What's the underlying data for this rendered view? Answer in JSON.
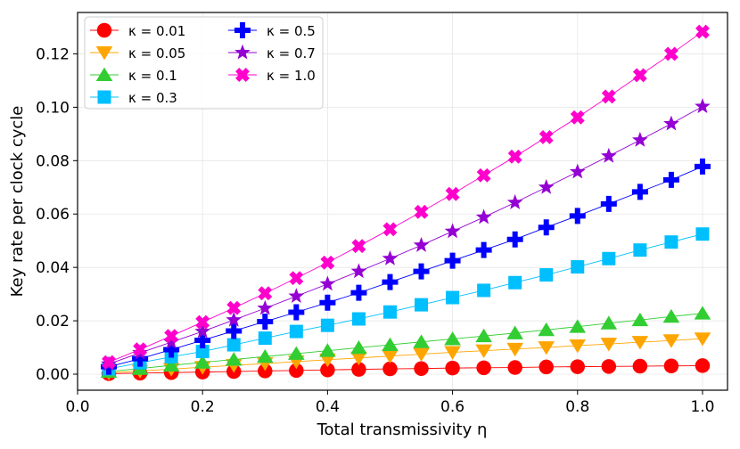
{
  "chart_data": {
    "type": "line",
    "xlabel": "Total transmissivity η",
    "ylabel": "Key rate per clock cycle",
    "xlim": [
      0.0,
      1.04
    ],
    "ylim": [
      -0.006,
      0.1355
    ],
    "xticks": [
      0.0,
      0.2,
      0.4,
      0.6,
      0.8,
      1.0
    ],
    "xtick_labels": [
      "0.0",
      "0.2",
      "0.4",
      "0.6",
      "0.8",
      "1.0"
    ],
    "yticks": [
      0.0,
      0.02,
      0.04,
      0.06,
      0.08,
      0.1,
      0.12
    ],
    "ytick_labels": [
      "0.00",
      "0.02",
      "0.04",
      "0.06",
      "0.08",
      "0.10",
      "0.12"
    ],
    "grid": true,
    "legend_position": "top-left",
    "legend_columns": 2,
    "x": [
      0.05,
      0.1,
      0.15,
      0.2,
      0.25,
      0.3,
      0.35,
      0.4,
      0.45,
      0.5,
      0.55,
      0.6,
      0.65,
      0.7,
      0.75,
      0.8,
      0.85,
      0.9,
      0.95,
      1.0
    ],
    "series": [
      {
        "name": "κ = 0.01",
        "color": "#ff0000",
        "marker": "circle",
        "values": [
          0.0002,
          0.0004,
          0.0006,
          0.0008,
          0.001,
          0.0012,
          0.0014,
          0.0016,
          0.0018,
          0.002,
          0.0021,
          0.0023,
          0.0024,
          0.0025,
          0.0027,
          0.0028,
          0.0029,
          0.003,
          0.0031,
          0.0032
        ]
      },
      {
        "name": "κ = 0.05",
        "color": "#ffa500",
        "marker": "triangle-down",
        "values": [
          0.0005,
          0.0012,
          0.0019,
          0.0026,
          0.0033,
          0.004,
          0.0047,
          0.0054,
          0.0061,
          0.0068,
          0.0075,
          0.0082,
          0.0088,
          0.0094,
          0.01,
          0.0107,
          0.0113,
          0.012,
          0.0126,
          0.0133
        ]
      },
      {
        "name": "κ = 0.1",
        "color": "#32cd32",
        "marker": "triangle-up",
        "values": [
          0.001,
          0.0021,
          0.0033,
          0.0044,
          0.0055,
          0.0066,
          0.0077,
          0.0088,
          0.0099,
          0.011,
          0.0121,
          0.0132,
          0.0143,
          0.0154,
          0.0166,
          0.0178,
          0.0191,
          0.0203,
          0.0216,
          0.0228
        ]
      },
      {
        "name": "κ = 0.3",
        "color": "#00bfff",
        "marker": "square",
        "values": [
          0.002,
          0.0043,
          0.0065,
          0.0085,
          0.011,
          0.0135,
          0.016,
          0.0183,
          0.0207,
          0.0233,
          0.026,
          0.0287,
          0.0314,
          0.0343,
          0.0372,
          0.0402,
          0.0433,
          0.0465,
          0.0495,
          0.0525
        ]
      },
      {
        "name": "κ = 0.5",
        "color": "#0000ff",
        "marker": "plus",
        "values": [
          0.0028,
          0.0058,
          0.0092,
          0.0127,
          0.0162,
          0.0197,
          0.0232,
          0.0268,
          0.0305,
          0.0345,
          0.0385,
          0.0425,
          0.0465,
          0.0505,
          0.055,
          0.0593,
          0.0638,
          0.0683,
          0.0728,
          0.0778
        ]
      },
      {
        "name": "κ = 0.7",
        "color": "#9400d3",
        "marker": "star",
        "values": [
          0.0038,
          0.008,
          0.012,
          0.016,
          0.0203,
          0.0247,
          0.0292,
          0.0338,
          0.0385,
          0.0433,
          0.0483,
          0.0535,
          0.0588,
          0.0643,
          0.07,
          0.0758,
          0.0817,
          0.0877,
          0.0938,
          0.1003
        ]
      },
      {
        "name": "κ = 1.0",
        "color": "#ff00cc",
        "marker": "x",
        "values": [
          0.0045,
          0.0093,
          0.0143,
          0.0195,
          0.0248,
          0.0303,
          0.036,
          0.0418,
          0.048,
          0.0543,
          0.0608,
          0.0675,
          0.0745,
          0.0815,
          0.0888,
          0.0962,
          0.104,
          0.112,
          0.12,
          0.1283
        ]
      }
    ]
  }
}
